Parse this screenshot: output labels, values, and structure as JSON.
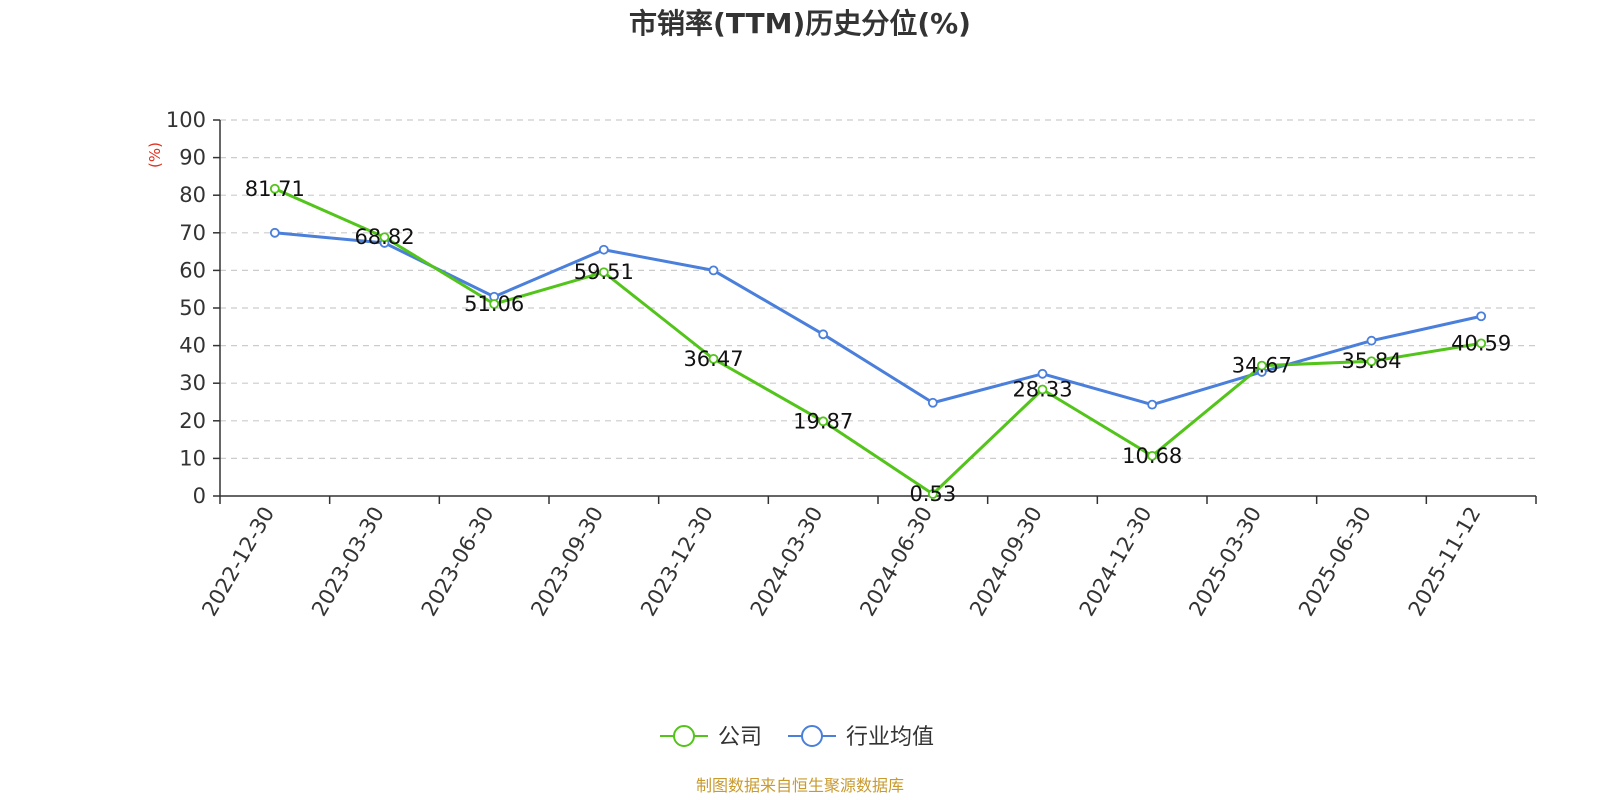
{
  "chart_data": {
    "type": "line",
    "title": "市销率(TTM)历史分位(%)",
    "ylabel": "(%)",
    "xlabel": "",
    "ylim": [
      0,
      100
    ],
    "yticks": [
      0,
      10,
      20,
      30,
      40,
      50,
      60,
      70,
      80,
      90,
      100
    ],
    "grid": true,
    "legend_position": "bottom",
    "categories": [
      "2022-12-30",
      "2023-03-30",
      "2023-06-30",
      "2023-09-30",
      "2023-12-30",
      "2024-03-30",
      "2024-06-30",
      "2024-09-30",
      "2024-12-30",
      "2025-03-30",
      "2025-06-30",
      "2025-11-12"
    ],
    "series": [
      {
        "name": "公司",
        "color": "#52c41a",
        "values": [
          81.71,
          68.82,
          51.06,
          59.51,
          36.47,
          19.87,
          0.53,
          28.33,
          10.68,
          34.67,
          35.84,
          40.59
        ],
        "labels": [
          "81.71",
          "68.82",
          "51.06",
          "59.51",
          "36.47",
          "19.87",
          "0.53",
          "28.33",
          "10.68",
          "34.67",
          "35.84",
          "40.59"
        ]
      },
      {
        "name": "行业均值",
        "color": "#4a7fdc",
        "values": [
          70.0,
          67.3,
          53.0,
          65.5,
          60.0,
          43.0,
          24.8,
          32.5,
          24.3,
          33.0,
          41.3,
          47.8
        ]
      }
    ],
    "source": "制图数据来自恒生聚源数据库"
  }
}
